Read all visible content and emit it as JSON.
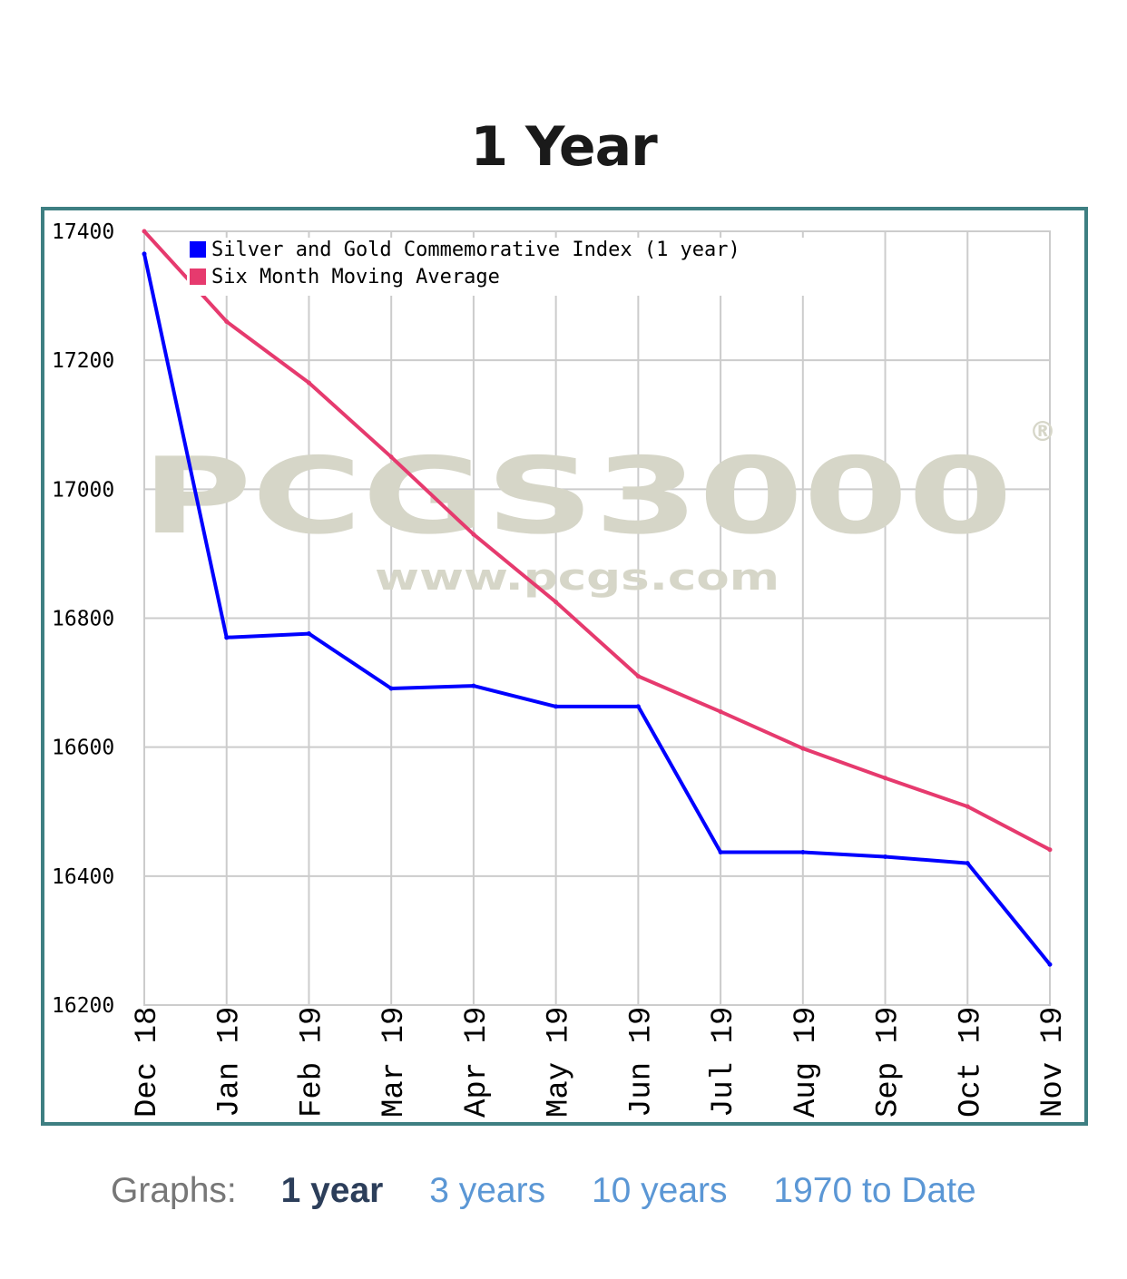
{
  "title": "1 Year",
  "graphs_nav": {
    "label": "Graphs:",
    "links": [
      {
        "label": "1 year",
        "active": true
      },
      {
        "label": "3 years",
        "active": false
      },
      {
        "label": "10 years",
        "active": false
      },
      {
        "label": "1970 to Date",
        "active": false
      }
    ]
  },
  "colors": {
    "frame": "#3e7f82",
    "series_index": "#0000ff",
    "series_average": "#e63a6e",
    "grid": "#cccccc",
    "link": "#5b97d5",
    "active_link": "#2c3e5a"
  },
  "watermark": {
    "main": "PCGS3000",
    "sub": "www.pcgs.com",
    "mark": "®"
  },
  "chart_data": {
    "type": "line",
    "categories": [
      "Dec 18",
      "Jan 19",
      "Feb 19",
      "Mar 19",
      "Apr 19",
      "May 19",
      "Jun 19",
      "Jul 19",
      "Aug 19",
      "Sep 19",
      "Oct 19",
      "Nov 19"
    ],
    "ylim": [
      16200,
      17400
    ],
    "yticks": [
      "17400",
      "17200",
      "17000",
      "16800",
      "16600",
      "16400",
      "16200"
    ],
    "grid": true,
    "legend_position": "top-left",
    "series": [
      {
        "name": "Silver and Gold Commemorative Index (1 year)",
        "color": "#0000ff",
        "values": [
          17365,
          16770,
          16776,
          16691,
          16695,
          16663,
          16663,
          16437,
          16437,
          16430,
          16420,
          16263
        ]
      },
      {
        "name": "Six Month Moving Average",
        "color": "#e63a6e",
        "values": [
          17400,
          17260,
          17165,
          17050,
          16930,
          16825,
          16710,
          16655,
          16598,
          16552,
          16508,
          16441
        ]
      }
    ]
  }
}
